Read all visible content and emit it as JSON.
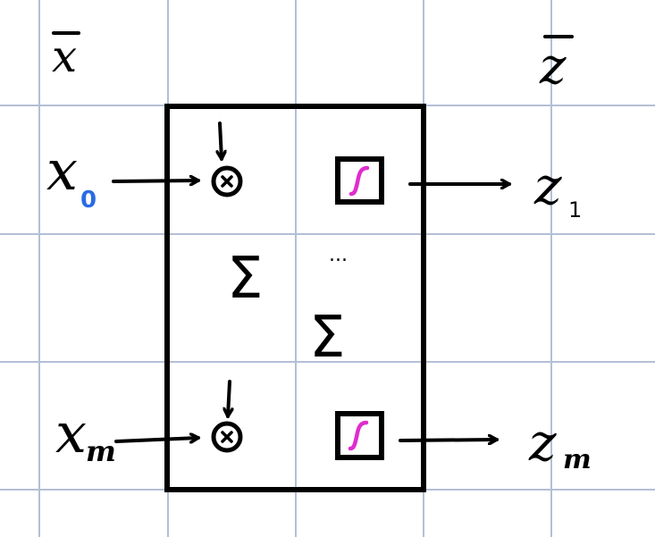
{
  "labels": {
    "x_vector": "x",
    "z_vector": "z",
    "input_first": "x",
    "input_first_sub": "0",
    "input_last": "x",
    "input_last_sub": "m",
    "output_first": "z",
    "output_first_sub": "1",
    "output_last": "z",
    "output_last_sub": "m",
    "sum_top": "Σ",
    "sum_middle": "Σ",
    "ellipsis": "..."
  },
  "colors": {
    "grid": "#b4bfd6",
    "ink": "#000000",
    "subscript_blue": "#2a6be6",
    "activation_magenta": "#e02ccd"
  },
  "icons": {
    "multiply": "circled-times",
    "activation": "sigmoid-box"
  }
}
